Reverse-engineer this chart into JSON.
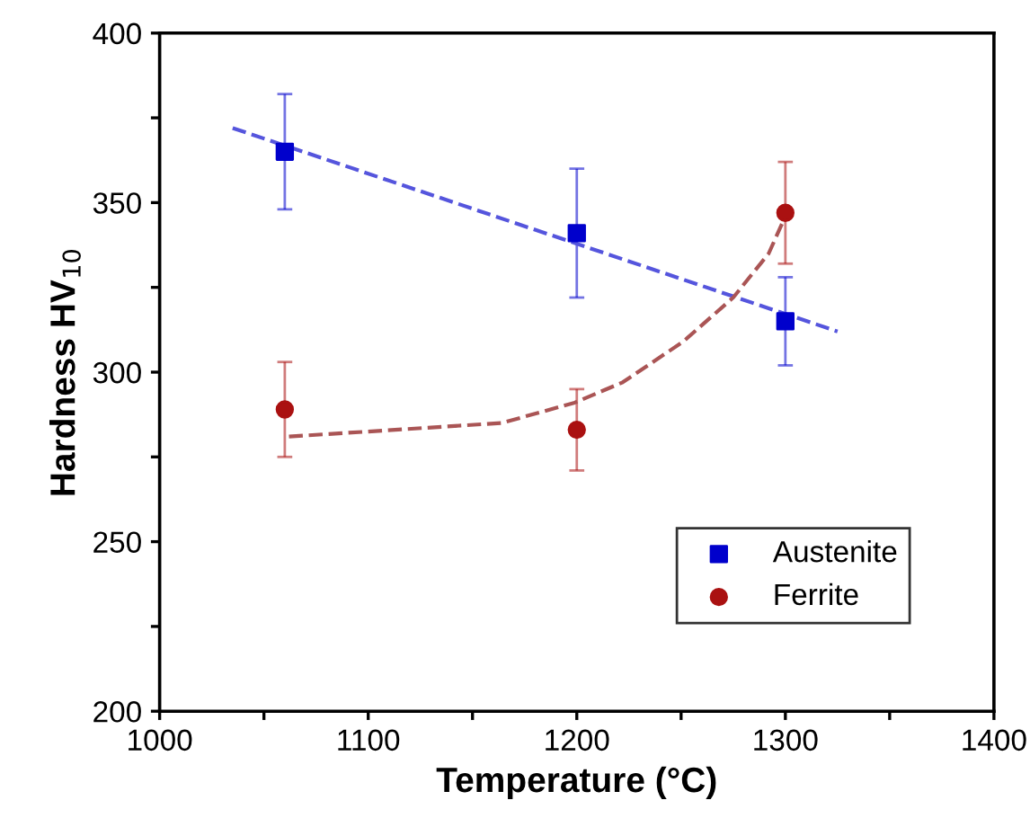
{
  "chart_data": {
    "type": "scatter",
    "xlabel": "Temperature (°C)",
    "ylabel": "Hardness HV$_{10}$",
    "xlim": [
      1000,
      1400
    ],
    "ylim": [
      200,
      400
    ],
    "xticks": [
      1000,
      {
        "value": 1050,
        "label": null
      },
      1100,
      {
        "value": 1150,
        "label": null
      },
      1200,
      {
        "value": 1250,
        "label": null
      },
      1300,
      {
        "value": 1350,
        "label": null
      },
      1400
    ],
    "yticks": [
      200,
      {
        "value": 225,
        "label": null
      },
      250,
      {
        "value": 275,
        "label": null
      },
      300,
      {
        "value": 325,
        "label": null
      },
      350,
      {
        "value": 375,
        "label": null
      },
      400
    ],
    "grid": false,
    "legend": "bottom right",
    "series": [
      {
        "name": "Austenite",
        "marker": "square",
        "color": "#0000cc",
        "x": [
          1060,
          1200,
          1300
        ],
        "values": [
          365,
          341,
          315
        ],
        "errors": [
          [
            348,
            382
          ],
          [
            322,
            360
          ],
          [
            302,
            328
          ]
        ]
      },
      {
        "name": "Ferrite",
        "marker": "circle",
        "color": "#aa1111",
        "x": [
          1060,
          1200,
          1300
        ],
        "values": [
          289,
          283,
          347
        ],
        "errors": [
          [
            275,
            303
          ],
          [
            271,
            295
          ],
          [
            332,
            362
          ]
        ]
      },
      {
        "type": "line",
        "line_style": "dashed",
        "color": "#5555dd",
        "x": [
          1035,
          1325
        ],
        "values": [
          372,
          312
        ]
      },
      {
        "type": "line",
        "line_style": "dashed",
        "color": "#aa5555",
        "x": [
          1062,
          1164,
          1199,
          1222,
          1251,
          1275,
          1292,
          1300
        ],
        "values": [
          281,
          285,
          291,
          297,
          309,
          322,
          335,
          346
        ]
      }
    ]
  }
}
